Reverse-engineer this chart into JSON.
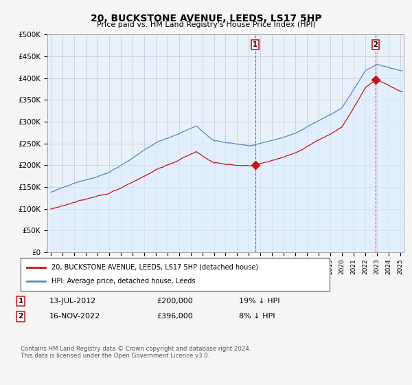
{
  "title": "20, BUCKSTONE AVENUE, LEEDS, LS17 5HP",
  "subtitle": "Price paid vs. HM Land Registry's House Price Index (HPI)",
  "ylabel_labels": [
    "£0",
    "£50K",
    "£100K",
    "£150K",
    "£200K",
    "£250K",
    "£300K",
    "£350K",
    "£400K",
    "£450K",
    "£500K"
  ],
  "yticks": [
    0,
    50000,
    100000,
    150000,
    200000,
    250000,
    300000,
    350000,
    400000,
    450000,
    500000
  ],
  "xlim_start": 1994.7,
  "xlim_end": 2025.3,
  "ylim": [
    0,
    500000
  ],
  "hpi_color": "#5588bb",
  "price_color": "#cc1111",
  "hpi_fill_color": "#ddeeff",
  "transaction1_date": 2012.54,
  "transaction1_price": 200000,
  "transaction1_label": "1",
  "transaction2_date": 2022.88,
  "transaction2_price": 396000,
  "transaction2_label": "2",
  "legend_line1": "20, BUCKSTONE AVENUE, LEEDS, LS17 5HP (detached house)",
  "legend_line2": "HPI: Average price, detached house, Leeds",
  "annotation1_date": "13-JUL-2012",
  "annotation1_price": "£200,000",
  "annotation1_hpi": "19% ↓ HPI",
  "annotation2_date": "16-NOV-2022",
  "annotation2_price": "£396,000",
  "annotation2_hpi": "8% ↓ HPI",
  "footnote": "Contains HM Land Registry data © Crown copyright and database right 2024.\nThis data is licensed under the Open Government Licence v3.0.",
  "bg_color": "#f5f5f5",
  "plot_bg_color": "#e8f0f8",
  "grid_color": "#bbbbcc"
}
